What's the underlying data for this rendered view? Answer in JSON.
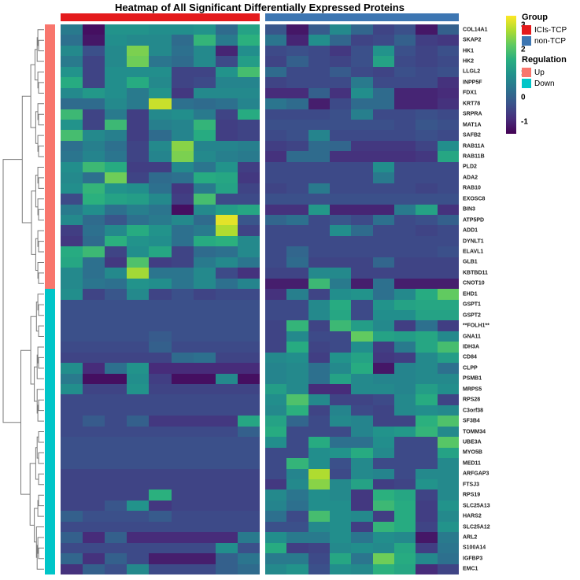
{
  "title": "Heatmap of All Significant Differentially Expressed Proteins",
  "legend": {
    "group": {
      "title": "Group",
      "items": [
        {
          "label": "ICIs-TCP",
          "color": "#E41A1C"
        },
        {
          "label": "non-TCP",
          "color": "#3D76B2"
        }
      ]
    },
    "regulation": {
      "title": "Regulation",
      "items": [
        {
          "label": "Up",
          "color": "#F8766D"
        },
        {
          "label": "Down",
          "color": "#00C5C8"
        }
      ]
    }
  },
  "chart_data": {
    "type": "heatmap",
    "column_groups": [
      {
        "name": "ICIs-TCP",
        "color": "#E41A1C",
        "n_cols": 9
      },
      {
        "name": "non-TCP",
        "color": "#3D76B2",
        "n_cols": 9
      }
    ],
    "row_annotation": {
      "up_count": 25,
      "down_count": 27,
      "up_color": "#F8766D",
      "down_color": "#00C5C8"
    },
    "genes": [
      "COL14A1",
      "SKAP2",
      "HK1",
      "HK2",
      "LLGL2",
      "INPP5F",
      "FDX1",
      "KRT78",
      "SRPRA",
      "MAT1A",
      "SAFB2",
      "RAB11A",
      "RAB11B",
      "PLD2",
      "ADA2",
      "RAB10",
      "EXOSC8",
      "BIN3",
      "ATP5PD",
      "ADD1",
      "DYNLT1",
      "ELAVL1",
      "GLB1",
      "KBTBD11",
      "CNOT10",
      "EHD1",
      "GSPT1",
      "GSPT2",
      "**FOLH1**",
      "GNA11",
      "IDH3A",
      "CD84",
      "CLPP",
      "PSMB1",
      "MRPS5",
      "RPS28",
      "C3orf38",
      "SF3B4",
      "TOMM34",
      "UBE3A",
      "MYO5B",
      "MED11",
      "ARFGAP3",
      "FTSJ3",
      "RPS19",
      "SLC25A13",
      "HARS2",
      "SLC25A12",
      "ARL2",
      "S100A14",
      "IGFBP3",
      "EMC1"
    ],
    "values": [
      [
        0.5,
        -1.3,
        1.0,
        1.0,
        0.9,
        0.9,
        1.0,
        0.2,
        1.3,
        -0.2,
        -1.2,
        -0.1,
        0.8,
        0.1,
        -0.5,
        -0.3,
        -1.2,
        0.0
      ],
      [
        0.3,
        -1.2,
        0.9,
        0.8,
        0.8,
        0.2,
        1.7,
        0.5,
        1.6,
        0.4,
        -1.0,
        0.9,
        0.1,
        -0.5,
        -0.4,
        0.0,
        -0.6,
        -0.7
      ],
      [
        0.8,
        -0.3,
        0.8,
        2.4,
        0.8,
        0.3,
        0.8,
        -1.0,
        0.9,
        -0.4,
        -0.3,
        -0.4,
        -0.7,
        -0.3,
        1.0,
        -0.3,
        -0.5,
        -0.3
      ],
      [
        0.5,
        -0.5,
        0.8,
        2.3,
        0.4,
        0.2,
        0.8,
        -0.4,
        1.2,
        -0.5,
        0.0,
        -0.4,
        -0.5,
        -0.3,
        1.3,
        -0.4,
        -0.5,
        -0.4
      ],
      [
        1.0,
        -0.5,
        0.9,
        0.9,
        0.9,
        -0.5,
        -0.5,
        1.0,
        1.9,
        0.2,
        -0.4,
        -0.4,
        -0.1,
        -0.4,
        -0.5,
        -0.3,
        -0.4,
        -0.3
      ],
      [
        1.5,
        -0.5,
        0.9,
        1.5,
        0.8,
        -0.5,
        -0.4,
        0.7,
        0.7,
        -0.5,
        -0.4,
        -0.4,
        -0.4,
        0.5,
        -0.4,
        -0.4,
        -0.4,
        -0.8
      ],
      [
        0.8,
        1.1,
        0.9,
        0.5,
        1.0,
        -0.7,
        0.8,
        0.8,
        0.8,
        -0.9,
        -0.9,
        0.0,
        -0.8,
        0.9,
        0.2,
        -1.0,
        -1.0,
        -0.9
      ],
      [
        0.2,
        0.2,
        0.8,
        0.5,
        3.0,
        0.3,
        0.2,
        0.3,
        0.7,
        0.4,
        0.2,
        -1.1,
        -0.4,
        0.2,
        0.2,
        -1.0,
        -1.0,
        -0.8
      ],
      [
        1.8,
        -0.5,
        0.5,
        -0.6,
        0.8,
        0.9,
        0.5,
        -0.5,
        1.5,
        -0.4,
        -0.4,
        -0.4,
        -0.3,
        0.6,
        -0.4,
        -0.4,
        -0.3,
        -0.4
      ],
      [
        1.0,
        -0.5,
        1.8,
        -0.6,
        0.6,
        0.7,
        1.7,
        -0.6,
        -0.5,
        -0.3,
        -0.3,
        -0.3,
        -0.3,
        -0.3,
        -0.3,
        -0.4,
        -0.2,
        -0.3
      ],
      [
        1.9,
        0.8,
        0.6,
        -0.6,
        0.2,
        0.7,
        1.5,
        -0.6,
        -0.5,
        -0.4,
        -0.3,
        0.7,
        -0.4,
        -0.4,
        -0.4,
        -0.4,
        -0.3,
        -0.4
      ],
      [
        0.3,
        0.6,
        0.3,
        -0.5,
        0.8,
        2.5,
        0.7,
        0.7,
        0.6,
        -0.6,
        -0.5,
        0.2,
        0.1,
        -0.7,
        -0.7,
        -0.7,
        -0.5,
        0.9
      ],
      [
        0.4,
        0.7,
        0.4,
        -0.5,
        0.7,
        2.4,
        0.8,
        0.6,
        0.5,
        -0.8,
        0.2,
        0.2,
        -0.8,
        -0.8,
        -0.8,
        -0.8,
        -0.7,
        1.4
      ],
      [
        0.9,
        1.8,
        1.5,
        -0.6,
        -0.6,
        0.8,
        0.4,
        1.0,
        -0.6,
        -0.4,
        -0.4,
        -0.4,
        -0.4,
        -0.4,
        0.9,
        -0.4,
        -0.4,
        -0.4
      ],
      [
        0.8,
        0.3,
        2.3,
        -0.5,
        0.2,
        0.3,
        1.5,
        1.4,
        -0.7,
        -0.4,
        -0.4,
        -0.4,
        -0.4,
        -0.4,
        0.5,
        -0.4,
        -0.4,
        -0.4
      ],
      [
        0.9,
        1.7,
        1.0,
        0.9,
        0.3,
        -0.7,
        0.5,
        1.3,
        -0.5,
        -0.5,
        -0.4,
        0.5,
        -0.4,
        -0.4,
        -0.4,
        -0.4,
        -0.5,
        -0.4
      ],
      [
        -0.4,
        1.6,
        1.3,
        1.2,
        0.8,
        -0.6,
        1.9,
        -0.4,
        -0.4,
        -0.3,
        -0.3,
        -0.3,
        -0.3,
        -0.3,
        -0.3,
        -0.3,
        -0.3,
        -0.3
      ],
      [
        0.5,
        0.9,
        0.3,
        0.6,
        0.4,
        -1.3,
        0.8,
        1.2,
        1.4,
        -0.8,
        -0.8,
        1.1,
        -1.0,
        -1.0,
        -1.0,
        0.5,
        1.3,
        -0.8
      ],
      [
        0.8,
        0.2,
        -0.2,
        0.3,
        0.5,
        0.8,
        0.2,
        3.2,
        -0.2,
        0.1,
        0.3,
        -0.4,
        -0.2,
        -0.4,
        0.3,
        -0.4,
        -0.3,
        0.0
      ],
      [
        -0.6,
        0.3,
        0.8,
        1.5,
        1.0,
        0.3,
        0.5,
        2.8,
        -0.5,
        -0.4,
        -0.4,
        -0.4,
        0.9,
        0.2,
        -0.4,
        -0.4,
        -0.5,
        -0.4
      ],
      [
        -0.7,
        0.2,
        1.6,
        1.0,
        0.9,
        0.3,
        1.5,
        1.6,
        0.8,
        -0.4,
        -0.4,
        -0.4,
        -0.4,
        -0.4,
        -0.4,
        -0.4,
        -0.4,
        -0.4
      ],
      [
        1.5,
        1.8,
        -0.5,
        0.9,
        1.4,
        -0.5,
        0.2,
        0.3,
        0.8,
        -0.4,
        0.1,
        -0.4,
        -0.4,
        -0.4,
        -0.4,
        -0.4,
        -0.4,
        -0.3
      ],
      [
        1.4,
        0.3,
        -0.7,
        2.0,
        -0.6,
        -0.5,
        0.5,
        0.8,
        0.4,
        -0.4,
        0.2,
        -0.5,
        -0.5,
        -0.5,
        0.1,
        -0.5,
        -0.5,
        -0.5
      ],
      [
        0.8,
        0.3,
        0.8,
        2.7,
        0.4,
        0.4,
        0.8,
        -0.4,
        -0.8,
        -0.5,
        -0.5,
        0.8,
        0.8,
        -0.5,
        -0.5,
        -0.5,
        -0.5,
        -0.5
      ],
      [
        0.8,
        0.4,
        0.3,
        1.0,
        0.9,
        0.4,
        0.8,
        0.3,
        0.7,
        -1.1,
        -1.1,
        1.8,
        0.5,
        -1.1,
        0.3,
        -1.1,
        -1.1,
        -1.1
      ],
      [
        0.9,
        -0.5,
        -0.2,
        0.8,
        -0.5,
        -0.3,
        -0.5,
        -0.4,
        -0.4,
        -0.8,
        0.6,
        -0.5,
        0.9,
        1.0,
        0.3,
        0.8,
        1.5,
        2.2
      ],
      [
        -0.3,
        -0.3,
        -0.3,
        -0.3,
        -0.3,
        -0.3,
        -0.3,
        -0.3,
        -0.3,
        -0.4,
        -0.4,
        0.8,
        1.5,
        -0.4,
        1.0,
        1.3,
        1.4,
        1.4
      ],
      [
        -0.3,
        -0.3,
        -0.3,
        -0.3,
        -0.3,
        -0.3,
        -0.3,
        -0.3,
        -0.3,
        -0.4,
        -0.4,
        0.8,
        1.4,
        -0.4,
        0.9,
        0.9,
        1.3,
        1.3
      ],
      [
        -0.3,
        -0.3,
        -0.3,
        -0.3,
        -0.3,
        -0.3,
        -0.3,
        -0.3,
        -0.3,
        -0.5,
        1.7,
        -0.5,
        1.8,
        1.2,
        0.8,
        -0.6,
        0.3,
        -0.6
      ],
      [
        -0.3,
        -0.3,
        -0.3,
        -0.3,
        -0.1,
        -0.3,
        -0.3,
        -0.3,
        -0.3,
        -0.5,
        0.8,
        -0.4,
        -0.4,
        2.2,
        1.3,
        1.2,
        1.4,
        0.8
      ],
      [
        -0.4,
        -0.4,
        -0.4,
        -0.4,
        0.0,
        -0.4,
        -0.4,
        -0.4,
        -0.4,
        -0.5,
        1.5,
        -0.5,
        -0.4,
        0.9,
        -0.6,
        0.5,
        1.4,
        1.9
      ],
      [
        -0.5,
        -0.5,
        -0.5,
        -0.5,
        -0.5,
        0.2,
        0.3,
        -0.5,
        -0.5,
        0.8,
        0.9,
        -0.6,
        1.0,
        1.3,
        -0.7,
        -0.6,
        0.8,
        1.2
      ],
      [
        0.9,
        -0.9,
        0.3,
        1.0,
        -0.9,
        -0.9,
        -0.9,
        -0.9,
        -0.9,
        0.7,
        0.8,
        0.3,
        0.8,
        1.5,
        -1.2,
        0.7,
        0.8,
        0.3
      ],
      [
        0.5,
        -1.3,
        -1.3,
        0.9,
        -0.6,
        -1.3,
        -1.3,
        0.8,
        -1.3,
        0.7,
        0.8,
        0.3,
        1.3,
        0.8,
        0.7,
        0.7,
        0.8,
        0.8
      ],
      [
        0.9,
        -0.5,
        -0.5,
        1.0,
        -0.5,
        -0.5,
        -0.5,
        -0.5,
        -0.5,
        1.2,
        0.8,
        -0.9,
        -0.9,
        0.8,
        0.8,
        0.7,
        1.2,
        0.9
      ],
      [
        -0.4,
        -0.4,
        -0.4,
        -0.4,
        -0.4,
        -0.4,
        -0.4,
        -0.4,
        -0.4,
        0.9,
        2.0,
        0.8,
        -0.5,
        -0.5,
        -0.4,
        0.8,
        1.5,
        -0.5
      ],
      [
        -0.4,
        -0.4,
        -0.4,
        -0.4,
        -0.4,
        -0.4,
        -0.4,
        -0.4,
        -0.4,
        0.8,
        1.6,
        -0.5,
        0.7,
        -0.4,
        -0.5,
        0.8,
        0.9,
        0.8
      ],
      [
        -0.4,
        -0.1,
        -0.4,
        0.0,
        -0.7,
        -0.7,
        -0.7,
        -0.7,
        1.4,
        1.3,
        0.1,
        -0.4,
        0.8,
        0.7,
        -0.5,
        -0.5,
        1.6,
        2.0
      ],
      [
        -0.4,
        -0.4,
        -0.4,
        -0.4,
        -0.4,
        -0.4,
        -0.4,
        -0.4,
        0.0,
        1.5,
        -0.4,
        -0.4,
        -0.4,
        0.7,
        1.0,
        1.1,
        1.7,
        0.8
      ],
      [
        -0.3,
        -0.3,
        -0.3,
        -0.3,
        -0.3,
        -0.3,
        -0.3,
        -0.3,
        -0.3,
        0.9,
        -0.4,
        1.5,
        0.3,
        0.3,
        0.9,
        -0.4,
        -0.4,
        2.1
      ],
      [
        -0.3,
        -0.3,
        -0.3,
        -0.3,
        -0.3,
        -0.3,
        -0.3,
        -0.3,
        -0.3,
        -0.4,
        -0.4,
        0.9,
        1.0,
        1.5,
        0.8,
        -0.4,
        -0.4,
        1.3
      ],
      [
        -0.3,
        -0.3,
        -0.3,
        -0.3,
        -0.3,
        -0.3,
        -0.3,
        -0.3,
        -0.3,
        -0.4,
        1.7,
        0.9,
        -0.3,
        0.8,
        -0.4,
        -0.4,
        -0.4,
        0.8
      ],
      [
        -0.5,
        -0.5,
        -0.5,
        -0.5,
        -0.5,
        -0.5,
        -0.5,
        -0.5,
        -0.5,
        -0.4,
        0.7,
        2.8,
        -0.4,
        0.8,
        0.7,
        -0.4,
        0.8,
        0.8
      ],
      [
        -0.5,
        -0.5,
        -0.5,
        -0.5,
        -0.5,
        -0.5,
        -0.5,
        -0.5,
        -0.5,
        -0.7,
        0.8,
        2.5,
        0.8,
        1.3,
        -0.6,
        -0.5,
        1.0,
        0.8
      ],
      [
        -0.5,
        -0.5,
        -0.5,
        -0.5,
        1.6,
        -0.5,
        -0.5,
        -0.5,
        -0.5,
        0.8,
        0.4,
        0.9,
        0.8,
        -0.7,
        1.6,
        1.4,
        -0.5,
        0.8
      ],
      [
        -0.5,
        -0.5,
        -0.2,
        1.0,
        -0.7,
        -0.5,
        -0.5,
        -0.5,
        -0.5,
        0.7,
        0.3,
        0.9,
        0.9,
        -0.7,
        1.8,
        1.5,
        -0.6,
        1.0
      ],
      [
        0.0,
        -0.3,
        -0.3,
        -0.3,
        -0.1,
        -0.4,
        -0.4,
        -0.4,
        -0.4,
        0.3,
        -0.4,
        1.9,
        0.9,
        0.8,
        -0.6,
        1.5,
        -0.6,
        0.8
      ],
      [
        -0.4,
        -0.4,
        -0.4,
        -0.4,
        -0.4,
        -0.4,
        -0.4,
        -0.4,
        -0.4,
        -0.3,
        -0.3,
        0.8,
        0.9,
        -0.6,
        1.7,
        1.5,
        -0.5,
        1.0
      ],
      [
        0.0,
        -0.9,
        0.0,
        -0.9,
        -0.9,
        -0.9,
        -0.9,
        -0.9,
        0.5,
        0.9,
        0.5,
        0.5,
        0.9,
        0.4,
        0.9,
        0.8,
        -1.2,
        0.5
      ],
      [
        -0.4,
        -0.4,
        -0.4,
        -0.4,
        -0.4,
        -0.4,
        -0.4,
        0.9,
        -0.3,
        1.5,
        -0.6,
        -0.5,
        0.8,
        0.9,
        0.8,
        1.4,
        -0.6,
        0.4
      ],
      [
        0.1,
        -0.8,
        0.0,
        -0.4,
        -1.1,
        -1.1,
        -1.1,
        0.0,
        0.4,
        0.5,
        0.5,
        -0.4,
        1.4,
        0.4,
        2.3,
        1.5,
        0.8,
        0.3
      ],
      [
        -0.8,
        0.0,
        -0.3,
        0.8,
        -0.4,
        -0.4,
        -0.4,
        0.0,
        0.2,
        0.8,
        1.0,
        -0.3,
        0.9,
        0.8,
        1.6,
        1.4,
        -0.9,
        -0.5
      ]
    ],
    "value_domain": [
      -1.5,
      3.4
    ],
    "colorbar_ticks": [
      3,
      2,
      1,
      0,
      -1
    ],
    "colormap": "viridis",
    "viridis_stops": [
      "#440154",
      "#472D7B",
      "#3B528B",
      "#2C728E",
      "#21918C",
      "#28AE80",
      "#5EC962",
      "#ADDC30",
      "#FDE725"
    ]
  }
}
